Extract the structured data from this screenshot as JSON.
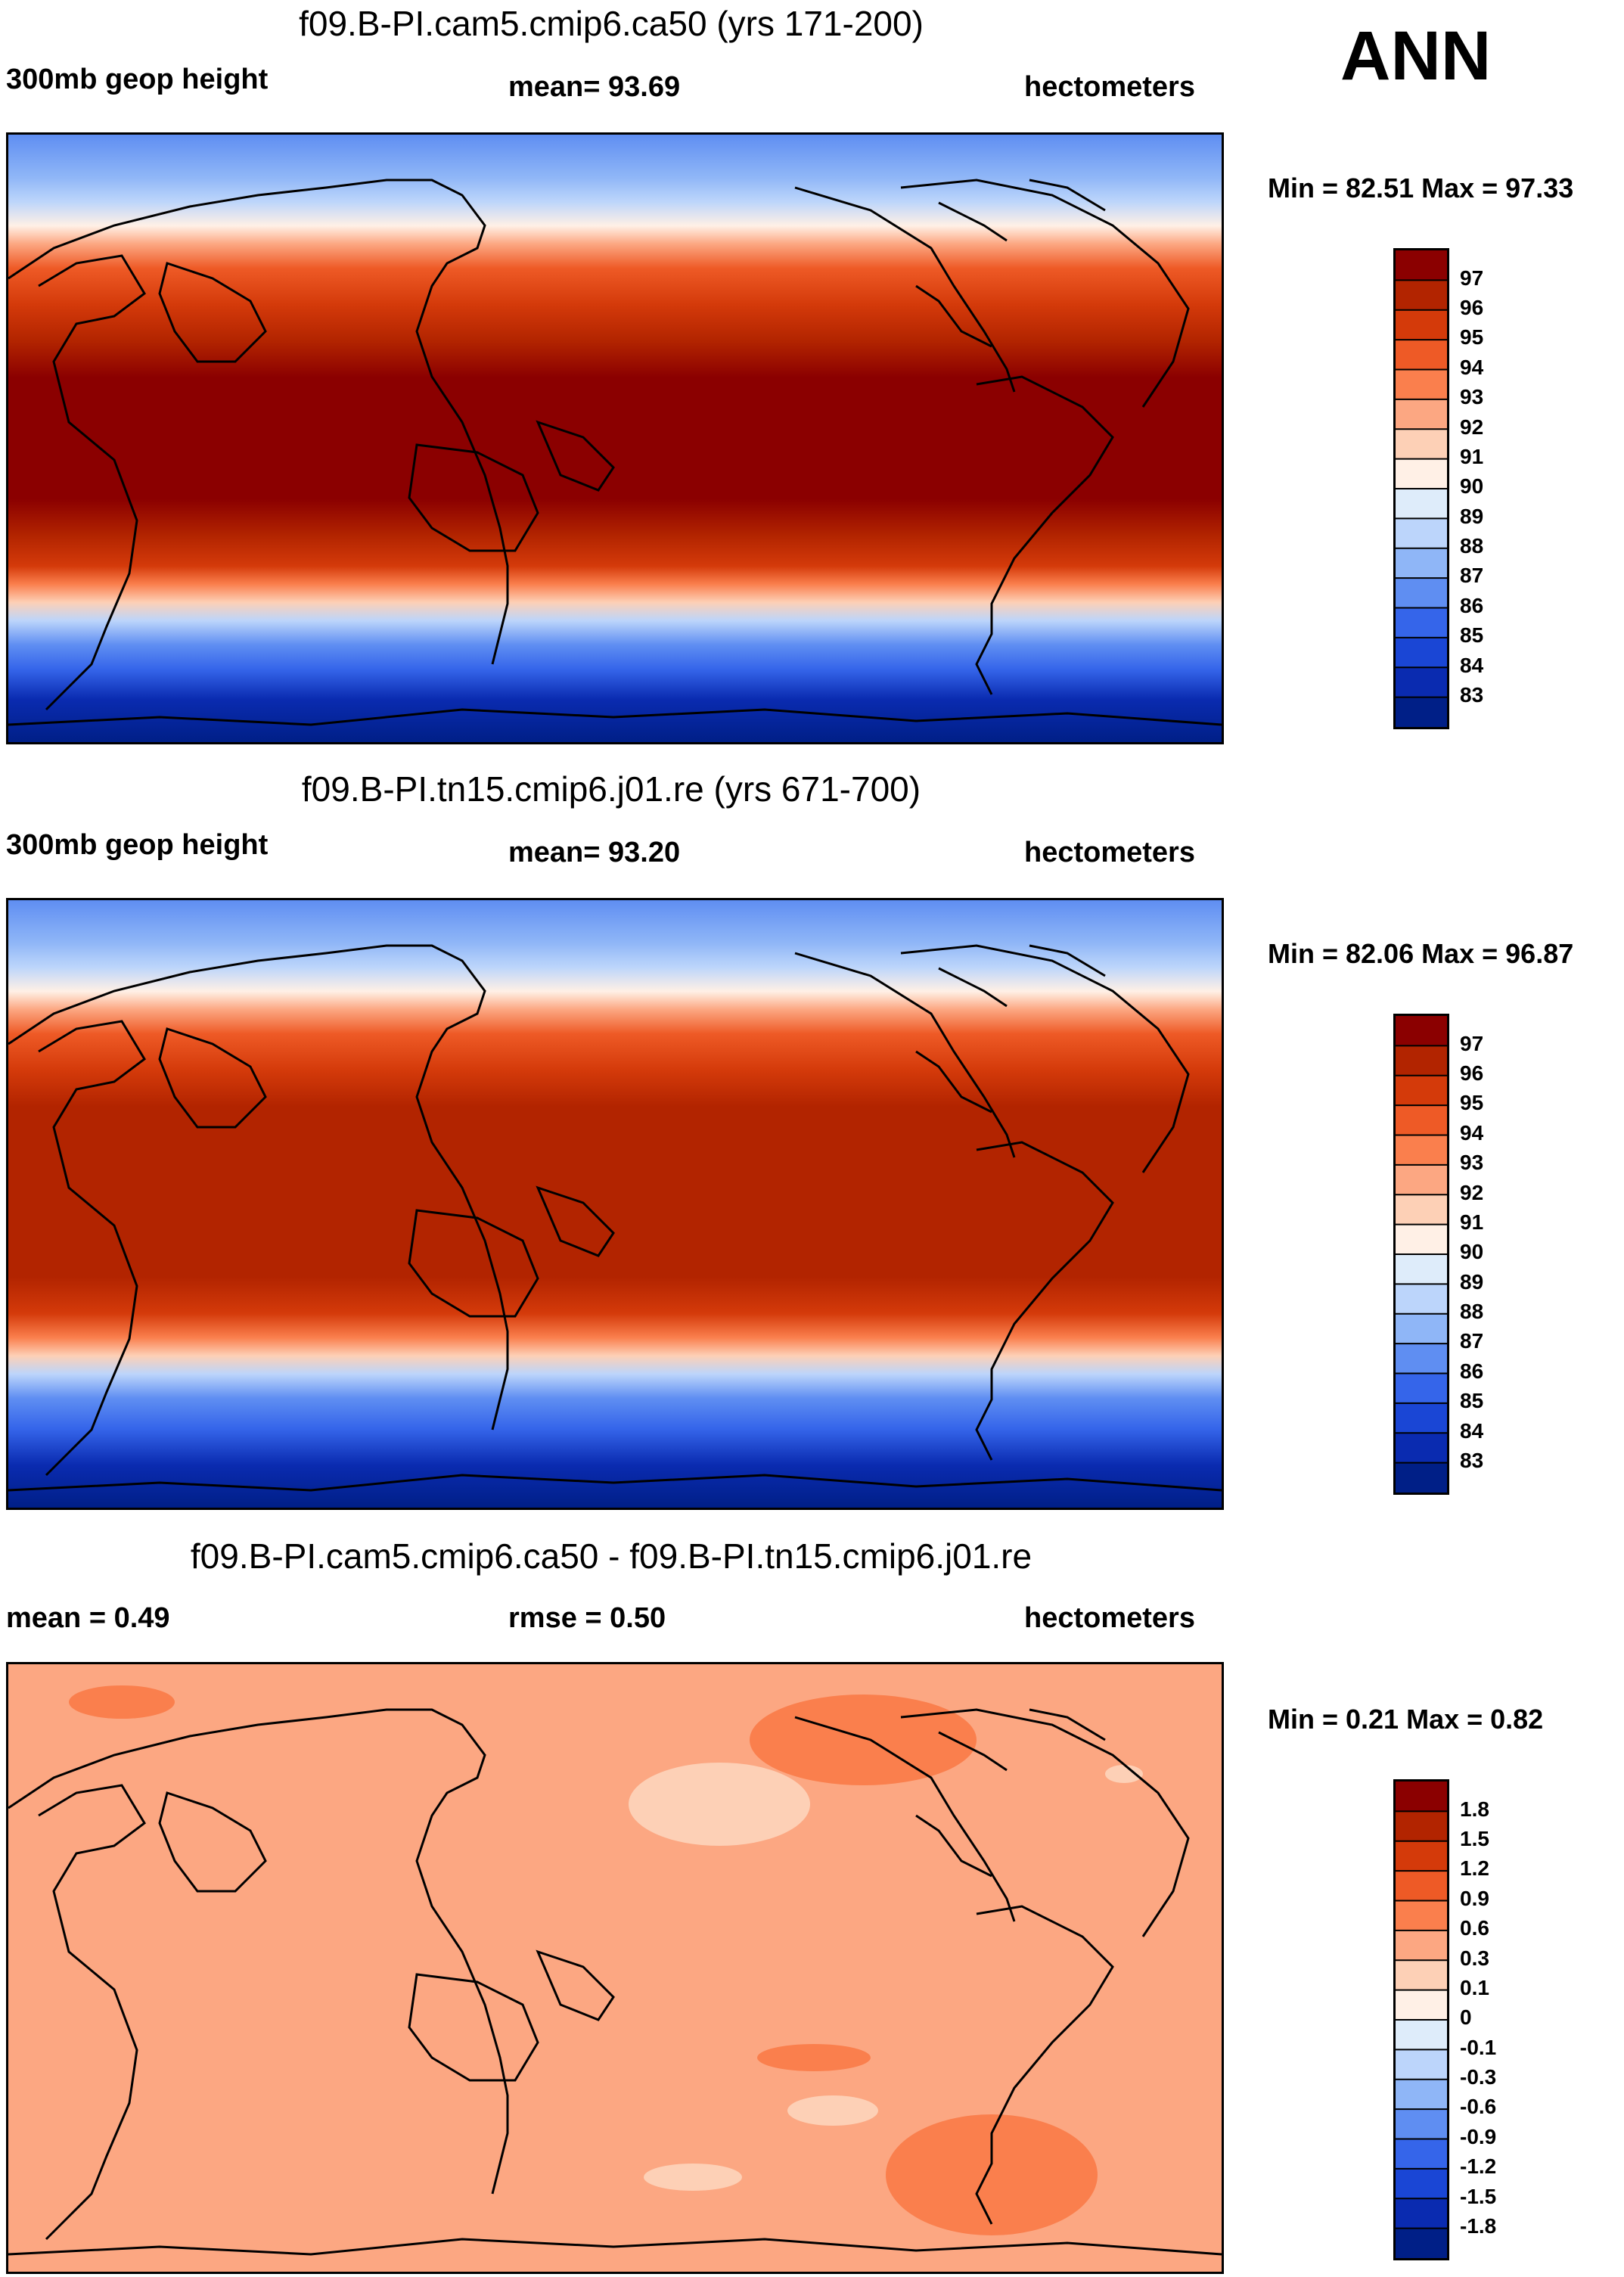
{
  "season": "ANN",
  "panels": [
    {
      "title": "f09.B-PI.cam5.cmip6.ca50 (yrs 171-200)",
      "left_label": "300mb geop height",
      "center_label": "mean=  93.69",
      "right_label": "hectometers",
      "minmax": "Min =  82.51 Max =  97.33",
      "legend": {
        "labels": [
          "97",
          "96",
          "95",
          "94",
          "93",
          "92",
          "91",
          "90",
          "89",
          "88",
          "87",
          "86",
          "85",
          "84",
          "83"
        ],
        "colors": [
          "#8b0000",
          "#b22400",
          "#d43a0a",
          "#ee5a26",
          "#fa7f4d",
          "#fca782",
          "#fdd0b6",
          "#fff0e6",
          "#deecfa",
          "#bcd5fb",
          "#8fb6f7",
          "#5f8ef2",
          "#3565ea",
          "#1a46d5",
          "#0a2bb0",
          "#001f87"
        ]
      }
    },
    {
      "title": "f09.B-PI.tn15.cmip6.j01.re (yrs 671-700)",
      "left_label": "300mb geop height",
      "center_label": "mean=  93.20",
      "right_label": "hectometers",
      "minmax": "Min =  82.06 Max =  96.87",
      "legend": {
        "labels": [
          "97",
          "96",
          "95",
          "94",
          "93",
          "92",
          "91",
          "90",
          "89",
          "88",
          "87",
          "86",
          "85",
          "84",
          "83"
        ],
        "colors": [
          "#8b0000",
          "#b22400",
          "#d43a0a",
          "#ee5a26",
          "#fa7f4d",
          "#fca782",
          "#fdd0b6",
          "#fff0e6",
          "#deecfa",
          "#bcd5fb",
          "#8fb6f7",
          "#5f8ef2",
          "#3565ea",
          "#1a46d5",
          "#0a2bb0",
          "#001f87"
        ]
      }
    },
    {
      "title": "f09.B-PI.cam5.cmip6.ca50 - f09.B-PI.tn15.cmip6.j01.re",
      "left_label": "mean =   0.49",
      "center_label": "rmse =   0.50",
      "right_label": "hectometers",
      "minmax": "Min =   0.21 Max =   0.82",
      "legend": {
        "labels": [
          "1.8",
          "1.5",
          "1.2",
          "0.9",
          "0.6",
          "0.3",
          "0.1",
          "0",
          "-0.1",
          "-0.3",
          "-0.6",
          "-0.9",
          "-1.2",
          "-1.5",
          "-1.8"
        ],
        "colors": [
          "#8b0000",
          "#b22400",
          "#d43a0a",
          "#ee5a26",
          "#fa7f4d",
          "#fca782",
          "#fdd0b6",
          "#fff0e6",
          "#deecfa",
          "#bcd5fb",
          "#8fb6f7",
          "#5f8ef2",
          "#3565ea",
          "#1a46d5",
          "#0a2bb0",
          "#001f87"
        ]
      }
    }
  ]
}
